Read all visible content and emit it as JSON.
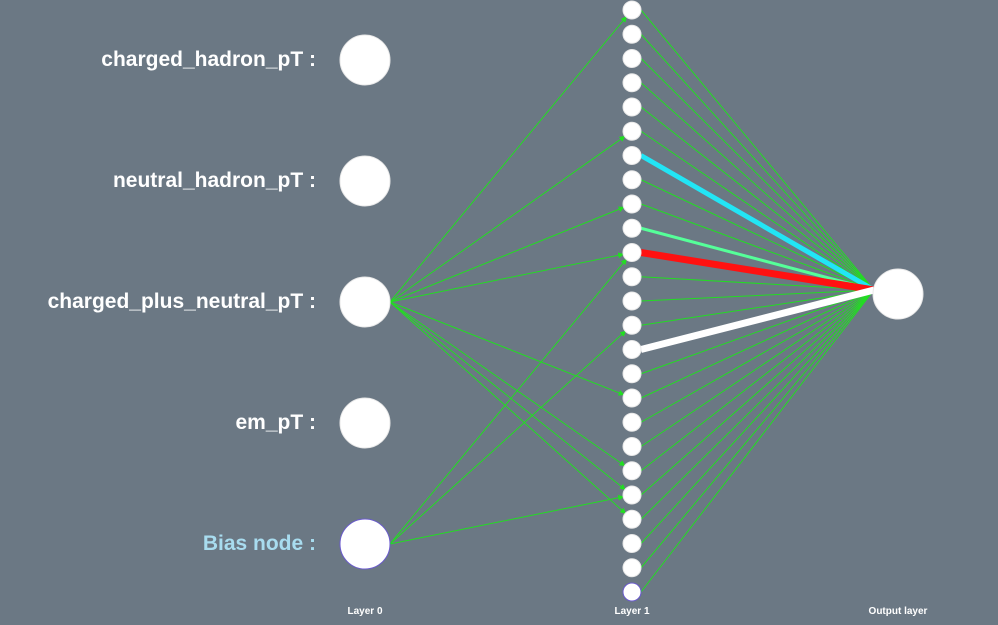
{
  "inputs": [
    {
      "label": "charged_hadron_pT :"
    },
    {
      "label": "neutral_hadron_pT :"
    },
    {
      "label": "charged_plus_neutral_pT :"
    },
    {
      "label": "em_pT :"
    },
    {
      "label": "Bias node :"
    }
  ],
  "layers": {
    "input": "Layer 0",
    "hidden": "Layer 1",
    "output": "Output layer"
  },
  "hidden_node_count": 25,
  "colors": {
    "background": "#6b7884",
    "input_label": "#ffffff",
    "bias_label": "#a8dcef",
    "node_fill": "#ffffff",
    "edge_default": "#22dd22",
    "edge_cyan": "#22e5f5",
    "edge_red": "#ff1111",
    "edge_white": "#ffffff",
    "edge_mint": "#55ff99"
  },
  "input_to_hidden_edges": [
    {
      "from": 2,
      "to": 0
    },
    {
      "from": 2,
      "to": 5
    },
    {
      "from": 2,
      "to": 8
    },
    {
      "from": 2,
      "to": 10
    },
    {
      "from": 2,
      "to": 16
    },
    {
      "from": 2,
      "to": 19
    },
    {
      "from": 2,
      "to": 20
    },
    {
      "from": 2,
      "to": 21
    },
    {
      "from": 4,
      "to": 10
    },
    {
      "from": 4,
      "to": 13
    },
    {
      "from": 4,
      "to": 20
    }
  ],
  "highlighted_output_edges": [
    {
      "from": 6,
      "color": "cyan",
      "weight": 5
    },
    {
      "from": 9,
      "color": "mint",
      "weight": 3
    },
    {
      "from": 10,
      "color": "red",
      "weight": 7
    },
    {
      "from": 14,
      "color": "white",
      "weight": 7
    }
  ]
}
